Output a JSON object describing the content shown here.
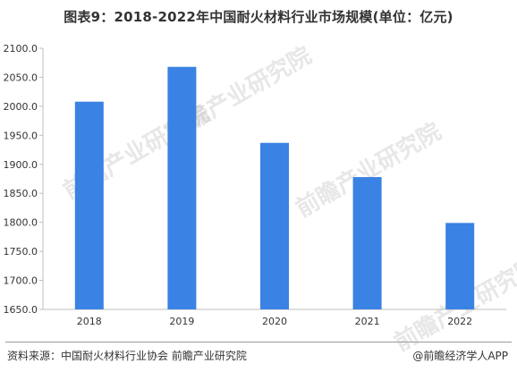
{
  "title": "图表9：2018-2022年中国耐火材料行业市场规模(单位：亿元)",
  "watermark": "前瞻产业研究院",
  "footer": {
    "source": "资料来源：中国耐火材料行业协会 前瞻产业研究院",
    "credit": "@前瞻经济学人APP"
  },
  "colors": {
    "bar": "#3a82e3",
    "axis": "#bfbfbf",
    "text": "#333333"
  },
  "chart_data": {
    "type": "bar",
    "categories": [
      "2018",
      "2019",
      "2020",
      "2021",
      "2022"
    ],
    "values": [
      2008,
      2068,
      1937,
      1878,
      1799
    ],
    "ylim": [
      1650,
      2100
    ],
    "yticks": [
      "1650.0",
      "1700.0",
      "1750.0",
      "1800.0",
      "1850.0",
      "1900.0",
      "1950.0",
      "2000.0",
      "2050.0",
      "2100.0"
    ],
    "grid": false
  }
}
